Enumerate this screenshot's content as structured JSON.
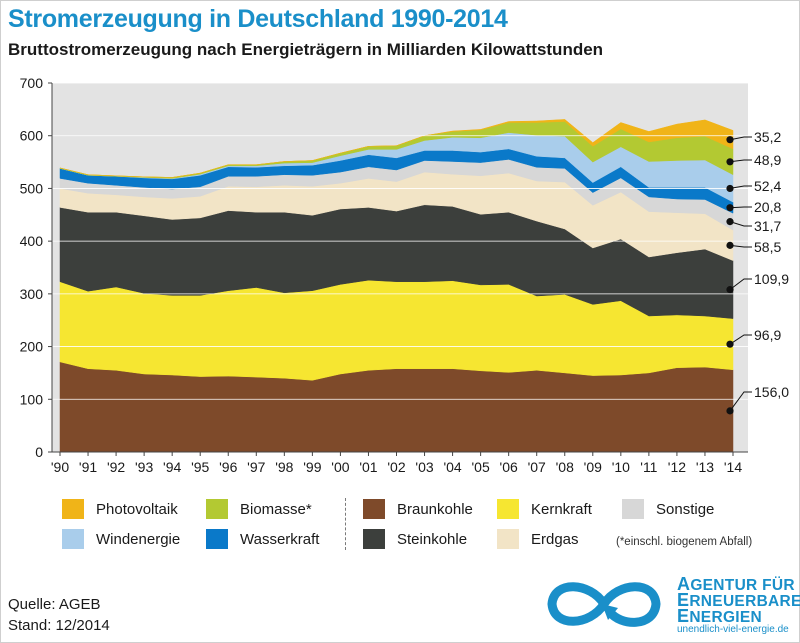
{
  "title": "Stromerzeugung in Deutschland 1990-2014",
  "subtitle": "Bruttostromerzeugung nach Energieträgern in Milliarden Kilowattstunden",
  "chart_data": {
    "type": "area",
    "stacked": true,
    "title": "Stromerzeugung in Deutschland 1990-2014",
    "subtitle": "Bruttostromerzeugung nach Energieträgern in Milliarden Kilowattstunden",
    "xlabel": "",
    "ylabel": "",
    "ylim": [
      0,
      700
    ],
    "yticks": [
      0,
      100,
      200,
      300,
      400,
      500,
      600,
      700
    ],
    "grid": true,
    "categories": [
      "'90",
      "'91",
      "'92",
      "'93",
      "'94",
      "'95",
      "'96",
      "'97",
      "'98",
      "'99",
      "'00",
      "'01",
      "'02",
      "'03",
      "'04",
      "'05",
      "'06",
      "'07",
      "'08",
      "'09",
      "'10",
      "'11",
      "'12",
      "'13",
      "'14"
    ],
    "series": [
      {
        "name": "Braunkohle",
        "color": "#7e4a2a",
        "values": [
          171,
          158,
          155,
          148,
          146,
          143,
          144,
          142,
          140,
          136,
          148,
          155,
          158,
          158,
          158,
          154,
          151,
          155,
          150,
          145,
          146,
          150,
          160,
          161,
          156
        ]
      },
      {
        "name": "Kernkraft",
        "color": "#f6e631",
        "values": [
          152,
          147,
          158,
          153,
          151,
          154,
          162,
          170,
          162,
          170,
          170,
          171,
          165,
          165,
          167,
          163,
          167,
          141,
          149,
          135,
          141,
          108,
          100,
          97,
          97
        ]
      },
      {
        "name": "Steinkohle",
        "color": "#3c3f3c",
        "values": [
          141,
          150,
          142,
          147,
          144,
          147,
          152,
          143,
          153,
          143,
          143,
          138,
          134,
          146,
          141,
          134,
          137,
          142,
          124,
          107,
          117,
          112,
          118,
          127,
          110
        ]
      },
      {
        "name": "Erdgas",
        "color": "#f2e4c6",
        "values": [
          36,
          36,
          33,
          36,
          40,
          41,
          46,
          48,
          51,
          55,
          49,
          55,
          56,
          62,
          61,
          73,
          74,
          76,
          89,
          81,
          89,
          86,
          76,
          67,
          58
        ]
      },
      {
        "name": "Sonstige",
        "color": "#d7d7d7",
        "values": [
          19,
          19,
          18,
          18,
          18,
          18,
          19,
          20,
          20,
          21,
          21,
          22,
          22,
          22,
          24,
          25,
          26,
          26,
          26,
          24,
          27,
          28,
          26,
          27,
          32
        ]
      },
      {
        "name": "Wasserkraft",
        "color": "#0a79c9",
        "values": [
          19,
          15,
          17,
          18,
          19,
          22,
          18,
          17,
          17,
          19,
          22,
          23,
          23,
          19,
          21,
          20,
          20,
          21,
          20,
          19,
          21,
          18,
          22,
          23,
          21
        ]
      },
      {
        "name": "Windenergie",
        "color": "#a9cdeb",
        "values": [
          0,
          0,
          0,
          1,
          1,
          2,
          2,
          3,
          5,
          5,
          9,
          10,
          16,
          19,
          25,
          27,
          31,
          40,
          41,
          39,
          38,
          49,
          51,
          52,
          52
        ]
      },
      {
        "name": "Biomasse*",
        "color": "#b3c932",
        "values": [
          1,
          1,
          1,
          1,
          2,
          2,
          2,
          2,
          3,
          4,
          5,
          6,
          7,
          9,
          11,
          15,
          19,
          24,
          28,
          30,
          34,
          37,
          43,
          45,
          49
        ]
      },
      {
        "name": "Photovoltaik",
        "color": "#f0b418",
        "values": [
          0,
          0,
          0,
          0,
          0,
          0,
          0,
          0,
          0,
          0,
          0,
          0,
          0,
          0,
          1,
          1,
          2,
          3,
          4,
          7,
          12,
          20,
          26,
          31,
          35
        ]
      }
    ],
    "end_labels": [
      {
        "series": "Photovoltaik",
        "label": "35,2"
      },
      {
        "series": "Biomasse*",
        "label": "48,9"
      },
      {
        "series": "Windenergie",
        "label": "52,4"
      },
      {
        "series": "Wasserkraft",
        "label": "20,8"
      },
      {
        "series": "Sonstige",
        "label": "31,7"
      },
      {
        "series": "Erdgas",
        "label": "58,5"
      },
      {
        "series": "Steinkohle",
        "label": "109,9"
      },
      {
        "series": "Kernkraft",
        "label": "96,9"
      },
      {
        "series": "Braunkohle",
        "label": "156,0"
      }
    ],
    "legend_position": "bottom"
  },
  "legend": {
    "photovoltaik": "Photovoltaik",
    "biomasse": "Biomasse*",
    "braunkohle": "Braunkohle",
    "kernkraft": "Kernkraft",
    "sonstige": "Sonstige",
    "windenergie": "Windenergie",
    "wasserkraft": "Wasserkraft",
    "steinkohle": "Steinkohle",
    "erdgas": "Erdgas",
    "footnote": "(*einschl. biogenem Abfall)"
  },
  "source": {
    "quelle": "Quelle: AGEB",
    "stand": "Stand: 12/2014"
  },
  "logo": {
    "line1_cap": "A",
    "line1_rest": "GENTUR FÜR",
    "line2_cap": "E",
    "line2_rest": "RNEUERBARE",
    "line3_cap": "E",
    "line3_rest": "NERGIEN",
    "url": "unendlich-viel-energie.de"
  },
  "colors": {
    "accent": "#1a8fc9",
    "plot_background": "#e3e3e3",
    "grid": "#ffffff"
  }
}
